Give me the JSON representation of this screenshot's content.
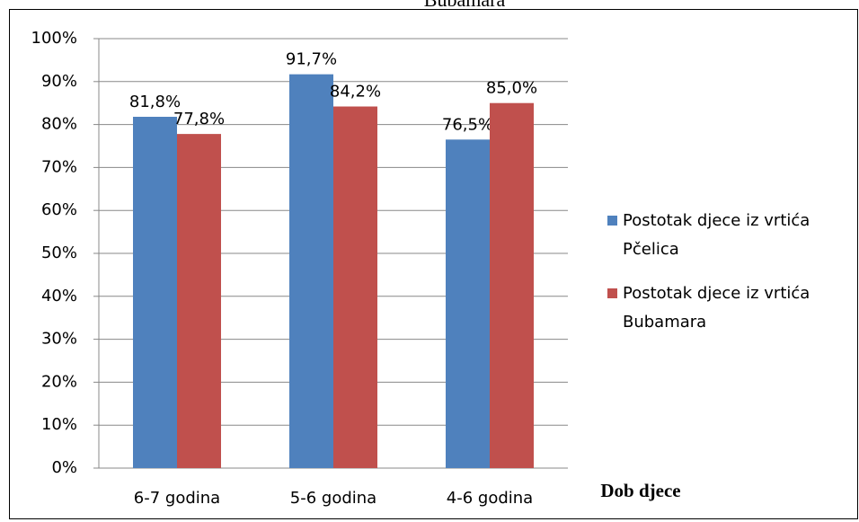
{
  "chart_data": {
    "type": "bar",
    "title": "Bubamara",
    "x_label": "Dob djece",
    "categories": [
      "6-7 godina",
      "5-6 godina",
      "4-6  godina"
    ],
    "series": [
      {
        "name": "Postotak djece iz vrtića Pčelica",
        "color": "#4f81bd",
        "values": [
          81.8,
          91.7,
          76.5
        ],
        "value_labels": [
          "81,8%",
          "91,7%",
          "76,5%"
        ]
      },
      {
        "name": "Postotak djece iz vrtića Bubamara",
        "color": "#c0504d",
        "values": [
          77.8,
          84.2,
          85.0
        ],
        "value_labels": [
          "77,8%",
          "84,2%",
          "85,0%"
        ]
      }
    ],
    "ylim": [
      0,
      100
    ],
    "yticks": [
      {
        "value": 0,
        "label": "0%"
      },
      {
        "value": 10,
        "label": "10%"
      },
      {
        "value": 20,
        "label": "20%"
      },
      {
        "value": 30,
        "label": "30%"
      },
      {
        "value": 40,
        "label": "40%"
      },
      {
        "value": 50,
        "label": "50%"
      },
      {
        "value": 60,
        "label": "60%"
      },
      {
        "value": 70,
        "label": "70%"
      },
      {
        "value": 80,
        "label": "80%"
      },
      {
        "value": 90,
        "label": "90%"
      },
      {
        "value": 100,
        "label": "100%"
      }
    ],
    "grid": true,
    "legend": "right"
  }
}
